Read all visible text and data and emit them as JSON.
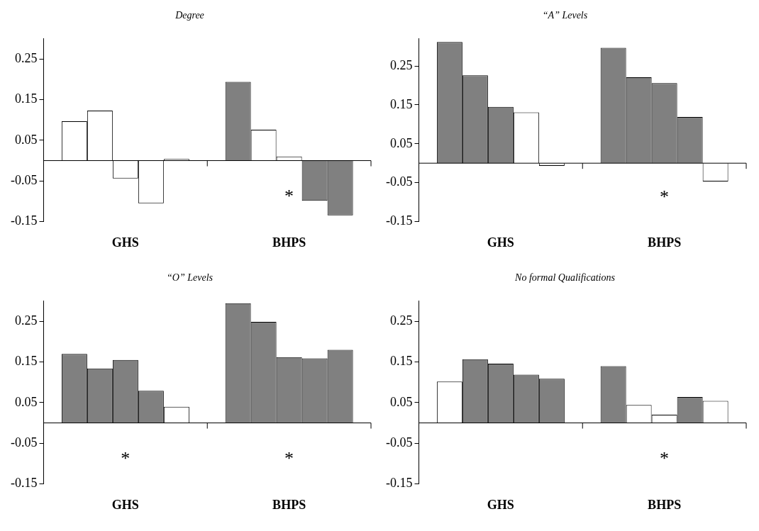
{
  "chart_data": [
    {
      "type": "bar",
      "title": "Degree",
      "categories": [
        "GHS",
        "BHPS"
      ],
      "ylim": [
        -0.15,
        0.3
      ],
      "yticks": [
        -0.15,
        -0.05,
        0.05,
        0.15,
        0.25
      ],
      "grid": false,
      "annotations": [
        "*"
      ],
      "series": [
        {
          "values": [
            0.097,
            0.194
          ],
          "colors": [
            "#ffffff",
            "#808080"
          ]
        },
        {
          "values": [
            0.123,
            0.076
          ],
          "colors": [
            "#ffffff",
            "#ffffff"
          ]
        },
        {
          "values": [
            -0.044,
            0.01
          ],
          "colors": [
            "#ffffff",
            "#ffffff"
          ]
        },
        {
          "values": [
            -0.105,
            -0.099
          ],
          "colors": [
            "#ffffff",
            "#808080"
          ]
        },
        {
          "values": [
            0.004,
            -0.135
          ],
          "colors": [
            "#ffffff",
            "#808080"
          ]
        }
      ]
    },
    {
      "type": "bar",
      "title": "“A” Levels",
      "categories": [
        "GHS",
        "BHPS"
      ],
      "ylim": [
        -0.15,
        0.32
      ],
      "yticks": [
        -0.15,
        -0.05,
        0.05,
        0.15,
        0.25
      ],
      "grid": false,
      "annotations": [
        "*"
      ],
      "series": [
        {
          "values": [
            0.312,
            0.297
          ],
          "colors": [
            "#808080",
            "#808080"
          ]
        },
        {
          "values": [
            0.226,
            0.221
          ],
          "colors": [
            "#808080",
            "#808080"
          ]
        },
        {
          "values": [
            0.145,
            0.206
          ],
          "colors": [
            "#808080",
            "#808080"
          ]
        },
        {
          "values": [
            0.131,
            0.119
          ],
          "colors": [
            "#ffffff",
            "#808080"
          ]
        },
        {
          "values": [
            -0.007,
            -0.047
          ],
          "colors": [
            "#ffffff",
            "#ffffff"
          ]
        }
      ]
    },
    {
      "type": "bar",
      "title": "“O” Levels",
      "categories": [
        "GHS",
        "BHPS"
      ],
      "ylim": [
        -0.15,
        0.3
      ],
      "yticks": [
        -0.15,
        -0.05,
        0.05,
        0.15,
        0.25
      ],
      "grid": false,
      "annotations": [
        "*",
        "*"
      ],
      "series": [
        {
          "values": [
            0.17,
            0.295
          ],
          "colors": [
            "#808080",
            "#808080"
          ]
        },
        {
          "values": [
            0.134,
            0.249
          ],
          "colors": [
            "#808080",
            "#808080"
          ]
        },
        {
          "values": [
            0.155,
            0.162
          ],
          "colors": [
            "#808080",
            "#808080"
          ]
        },
        {
          "values": [
            0.079,
            0.159
          ],
          "colors": [
            "#808080",
            "#808080"
          ]
        },
        {
          "values": [
            0.04,
            0.18
          ],
          "colors": [
            "#ffffff",
            "#808080"
          ]
        }
      ]
    },
    {
      "type": "bar",
      "title": "No formal Qualifications",
      "categories": [
        "GHS",
        "BHPS"
      ],
      "ylim": [
        -0.15,
        0.3
      ],
      "yticks": [
        -0.15,
        -0.05,
        0.05,
        0.15,
        0.25
      ],
      "grid": false,
      "annotations": [
        "*"
      ],
      "series": [
        {
          "values": [
            0.102,
            0.14
          ],
          "colors": [
            "#ffffff",
            "#808080"
          ]
        },
        {
          "values": [
            0.157,
            0.044
          ],
          "colors": [
            "#808080",
            "#ffffff"
          ]
        },
        {
          "values": [
            0.146,
            0.02
          ],
          "colors": [
            "#808080",
            "#ffffff"
          ]
        },
        {
          "values": [
            0.119,
            0.064
          ],
          "colors": [
            "#808080",
            "#808080"
          ]
        },
        {
          "values": [
            0.109,
            0.054
          ],
          "colors": [
            "#808080",
            "#ffffff"
          ]
        }
      ]
    }
  ]
}
